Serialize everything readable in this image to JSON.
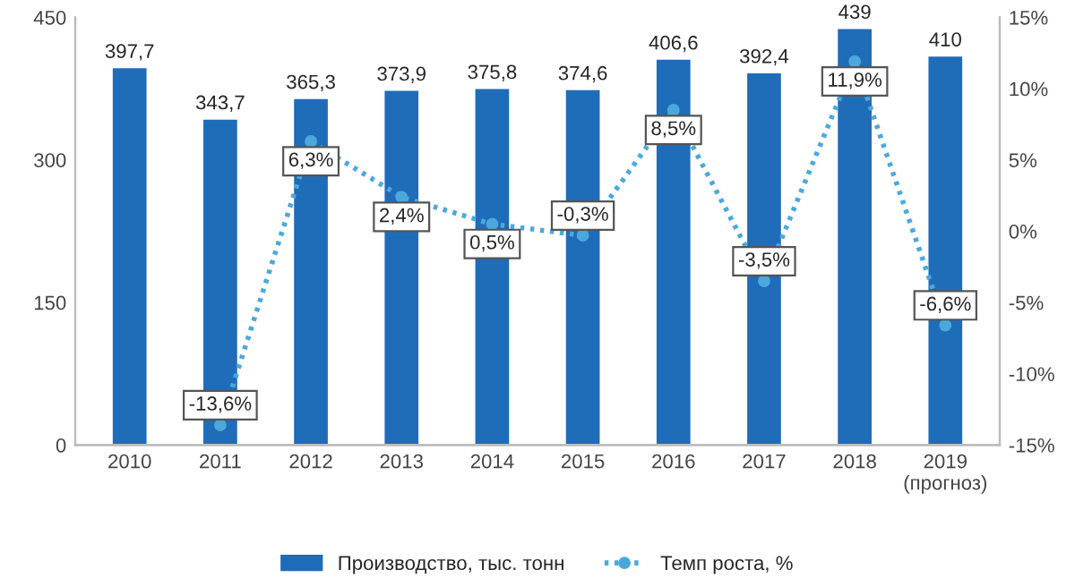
{
  "chart_data": {
    "type": "bar",
    "categories": [
      "2010",
      "2011",
      "2012",
      "2013",
      "2014",
      "2015",
      "2016",
      "2017",
      "2018",
      "2019\n(прогноз)"
    ],
    "series": [
      {
        "name": "Производство, тыс. тонн",
        "type": "bar",
        "color": "#1f6cb8",
        "values": [
          397.7,
          343.7,
          365.3,
          373.9,
          375.8,
          374.6,
          406.6,
          392.4,
          439,
          410
        ],
        "value_labels": [
          "397,7",
          "343,7",
          "365,3",
          "373,9",
          "375,8",
          "374,6",
          "406,6",
          "392,4",
          "439",
          "410"
        ]
      },
      {
        "name": "Темп роста, %",
        "type": "line",
        "axis": "y2",
        "color": "#4aa8dc",
        "marker": "circle",
        "line_style": "dotted",
        "values": [
          null,
          -13.6,
          6.3,
          2.4,
          0.5,
          -0.3,
          8.5,
          -3.5,
          11.9,
          -6.6
        ],
        "value_labels": [
          null,
          "-13,6%",
          "6,3%",
          "2,4%",
          "0,5%",
          "-0,3%",
          "8,5%",
          "-3,5%",
          "11,9%",
          "-6,6%"
        ]
      }
    ],
    "ylim": [
      0,
      450
    ],
    "yticks": [
      0,
      150,
      300,
      450
    ],
    "y2lim": [
      -15,
      15
    ],
    "y2ticks": [
      {
        "value": -15,
        "label": "-15%"
      },
      {
        "value": -10,
        "label": "-10%"
      },
      {
        "value": -5,
        "label": "-5%"
      },
      {
        "value": 0,
        "label": "0%"
      },
      {
        "value": 5,
        "label": "5%"
      },
      {
        "value": 10,
        "label": "10%"
      },
      {
        "value": 15,
        "label": "15%"
      }
    ],
    "legend": "bottom",
    "grid": false
  }
}
